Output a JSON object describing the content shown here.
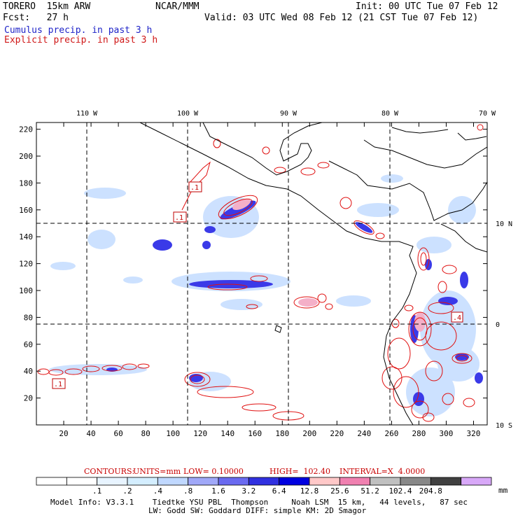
{
  "header": {
    "model": "TORERO  15km ARW",
    "org": "NCAR/MMM",
    "init": "Init: 00 UTC Tue 07 Feb 12",
    "fcst": "Fcst:   27 h",
    "valid": "Valid: 03 UTC Wed 08 Feb 12 (21 CST Tue 07 Feb 12)",
    "line_cumulus": "Cumulus precip. in past 3 h",
    "line_explicit": "Explicit precip. in past 3 h"
  },
  "map": {
    "lon_labels": [
      "110 W",
      "100 W",
      "90 W",
      "80 W",
      "70 W"
    ],
    "lat_labels": [
      "10 N",
      "0",
      "10 S"
    ],
    "x_ticks": [
      "20",
      "40",
      "60",
      "80",
      "100",
      "120",
      "140",
      "160",
      "180",
      "200",
      "220",
      "240",
      "260",
      "280",
      "300",
      "320"
    ],
    "y_ticks": [
      "20",
      "40",
      "60",
      "80",
      "100",
      "120",
      "140",
      "160",
      "180",
      "200",
      "220"
    ],
    "x_range": [
      0,
      330
    ],
    "y_range": [
      0,
      225
    ],
    "contour_labels": [
      ".1",
      ".1",
      ".1",
      ".4"
    ],
    "colors": {
      "cumulus": "#1f24c8",
      "explicit": "#d01818",
      "land": "#000000",
      "grid": "#000000"
    }
  },
  "contour_info": {
    "title": "CONTOURS:",
    "units": "UNITS=mm",
    "low": "LOW= 0.10000",
    "high": "HIGH=  102.40",
    "interval": "INTERVAL=X  4.0000"
  },
  "colorbar": {
    "labels": [
      ".1",
      ".2",
      ".4",
      ".8",
      "1.6",
      "3.2",
      "6.4",
      "12.8",
      "25.6",
      "51.2",
      "102.4",
      "204.8"
    ],
    "unit": "mm",
    "colors": [
      "#ffffff",
      "#ffffff",
      "#e8f4ff",
      "#d4eeff",
      "#c0d8ff",
      "#a0a8f8",
      "#6a6af0",
      "#3030e0",
      "#0000e0",
      "#ffc8c8",
      "#f080b0",
      "#c0c0c0",
      "#888888",
      "#404040",
      "#d8a8f8"
    ]
  },
  "footer": {
    "line1": "Model Info: V3.3.1    Tiedtke YSU PBL  Thompson     Noah LSM  15 km,   44 levels,   87 sec",
    "line2": "LW: Godd SW: Goddard DIFF: simple KM: 2D Smagor"
  }
}
